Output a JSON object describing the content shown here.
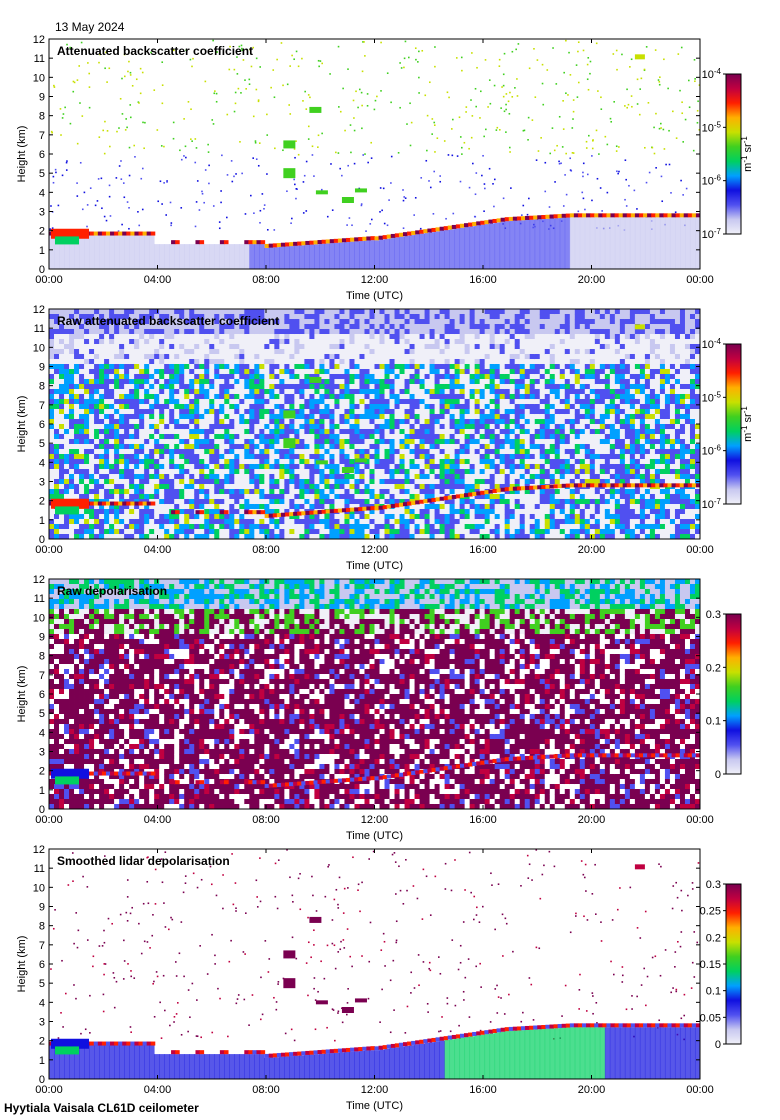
{
  "date": "13 May 2024",
  "footer": "Hyytiala Vaisala CL61D ceilometer",
  "colors": {
    "rainbow": [
      "#f0f0f8",
      "#c8c8f0",
      "#5050f0",
      "#1010e0",
      "#00a0ff",
      "#00d060",
      "#40d020",
      "#c8e000",
      "#ffb000",
      "#ff2000",
      "#c00040",
      "#7a0050"
    ],
    "background": "#ffffff"
  },
  "chart_data": [
    {
      "type": "heatmap",
      "title": "Attenuated backscatter coefficient",
      "xlabel": "Time (UTC)",
      "ylabel": "Height (km)",
      "x_ticks": [
        "00:00",
        "04:00",
        "08:00",
        "12:00",
        "16:00",
        "20:00",
        "00:00"
      ],
      "y_ticks": [
        "0",
        "1",
        "2",
        "3",
        "4",
        "5",
        "6",
        "7",
        "8",
        "9",
        "10",
        "11",
        "12"
      ],
      "ylim": [
        0,
        12
      ],
      "colorbar": {
        "scale": "log",
        "ticks": [
          "10-7",
          "10-6",
          "10-5",
          "10-4"
        ],
        "unit": "m-1 sr-1"
      }
    },
    {
      "type": "heatmap",
      "title": "Raw attenuated backscatter coefficient",
      "xlabel": "Time (UTC)",
      "ylabel": "Height (km)",
      "x_ticks": [
        "00:00",
        "04:00",
        "08:00",
        "12:00",
        "16:00",
        "20:00",
        "00:00"
      ],
      "y_ticks": [
        "0",
        "1",
        "2",
        "3",
        "4",
        "5",
        "6",
        "7",
        "8",
        "9",
        "10",
        "11",
        "12"
      ],
      "ylim": [
        0,
        12
      ],
      "colorbar": {
        "scale": "log",
        "ticks": [
          "10-7",
          "10-6",
          "10-5",
          "10-4"
        ],
        "unit": "m-1 sr-1"
      }
    },
    {
      "type": "heatmap",
      "title": "Raw depolarisation",
      "xlabel": "Time (UTC)",
      "ylabel": "Height (km)",
      "x_ticks": [
        "00:00",
        "04:00",
        "08:00",
        "12:00",
        "16:00",
        "20:00",
        "00:00"
      ],
      "y_ticks": [
        "0",
        "1",
        "2",
        "3",
        "4",
        "5",
        "6",
        "7",
        "8",
        "9",
        "10",
        "11",
        "12"
      ],
      "ylim": [
        0,
        12
      ],
      "colorbar": {
        "scale": "linear",
        "ticks": [
          "0",
          "0.1",
          "0.2",
          "0.3"
        ],
        "range": [
          0,
          0.3
        ]
      }
    },
    {
      "type": "heatmap",
      "title": "Smoothed lidar depolarisation",
      "xlabel": "Time (UTC)",
      "ylabel": "Height (km)",
      "x_ticks": [
        "00:00",
        "04:00",
        "08:00",
        "12:00",
        "16:00",
        "20:00",
        "00:00"
      ],
      "y_ticks": [
        "0",
        "1",
        "2",
        "3",
        "4",
        "5",
        "6",
        "7",
        "8",
        "9",
        "10",
        "11",
        "12"
      ],
      "ylim": [
        0,
        12
      ],
      "colorbar": {
        "scale": "linear",
        "ticks": [
          "0",
          "0.05",
          "0.1",
          "0.15",
          "0.2",
          "0.25",
          "0.3"
        ],
        "range": [
          0,
          0.3
        ]
      }
    }
  ]
}
